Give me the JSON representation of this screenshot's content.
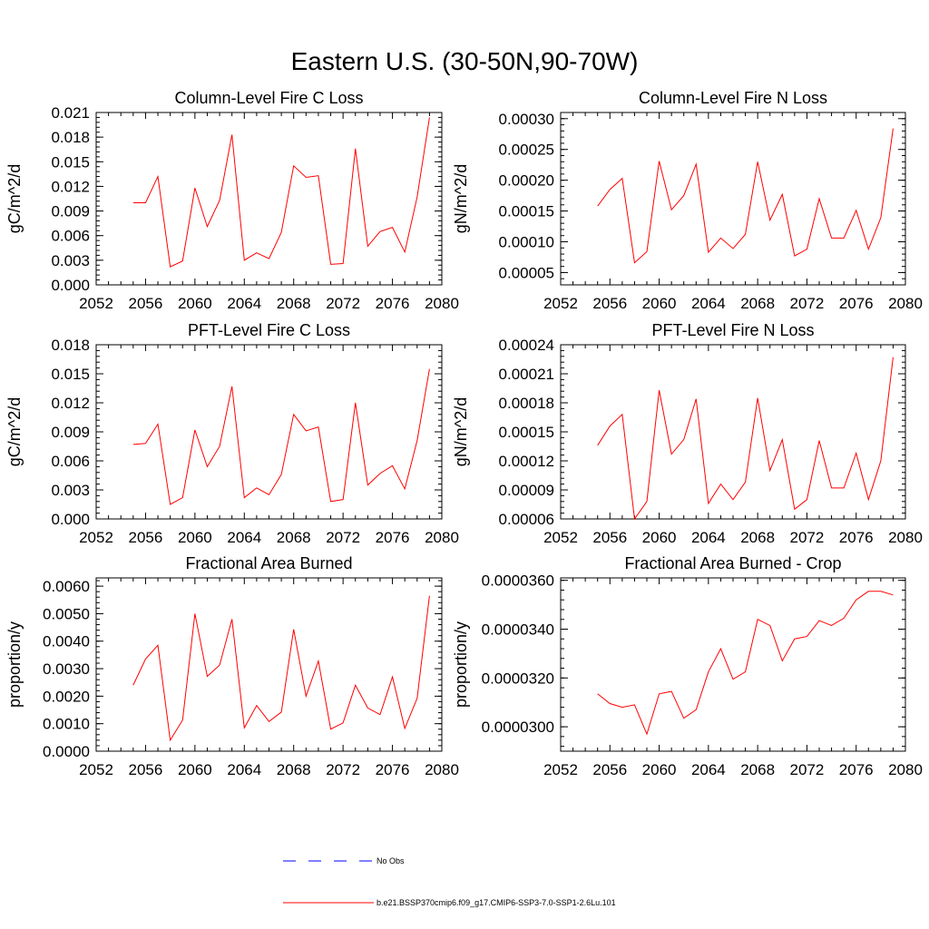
{
  "figure": {
    "title": "Eastern U.S. (30-50N,90-70W)"
  },
  "legend": {
    "items": [
      {
        "label": "No Obs",
        "color": "#0000ff",
        "dash": true
      },
      {
        "label": "b.e21.BSSP370cmip6.f09_g17.CMIP6-SSP3-7.0-SSP1-2.6Lu.101",
        "color": "#ff0000",
        "dash": false
      }
    ]
  },
  "chart_data": [
    {
      "type": "line",
      "title": "Column-Level Fire C Loss",
      "ylabel": "gC/m^2/d",
      "xlabel": "",
      "xlim": [
        2052,
        2080
      ],
      "xticks": [
        "2052",
        "2056",
        "2060",
        "2064",
        "2068",
        "2072",
        "2076",
        "2080"
      ],
      "ylim": [
        0,
        0.021
      ],
      "yticks": [
        "0.000",
        "0.003",
        "0.006",
        "0.009",
        "0.012",
        "0.015",
        "0.018",
        "0.021"
      ],
      "series": [
        {
          "color": "#ff0000",
          "x": [
            2055,
            2056,
            2057,
            2058,
            2059,
            2060,
            2061,
            2062,
            2063,
            2064,
            2065,
            2066,
            2067,
            2068,
            2069,
            2070,
            2071,
            2072,
            2073,
            2074,
            2075,
            2076,
            2077,
            2078,
            2079
          ],
          "y": [
            0.01,
            0.01,
            0.0132,
            0.0022,
            0.0029,
            0.0118,
            0.0071,
            0.0103,
            0.0183,
            0.003,
            0.0039,
            0.0032,
            0.0064,
            0.0145,
            0.0131,
            0.0133,
            0.0025,
            0.0026,
            0.0166,
            0.0047,
            0.0065,
            0.007,
            0.004,
            0.0107,
            0.0204
          ]
        }
      ]
    },
    {
      "type": "line",
      "title": "Column-Level Fire N Loss",
      "ylabel": "gN/m^2/d",
      "xlabel": "",
      "xlim": [
        2052,
        2080
      ],
      "xticks": [
        "2052",
        "2056",
        "2060",
        "2064",
        "2068",
        "2072",
        "2076",
        "2080"
      ],
      "ylim": [
        3e-05,
        0.00031
      ],
      "yticks": [
        "0.00005",
        "0.00010",
        "0.00015",
        "0.00020",
        "0.00025",
        "0.00030"
      ],
      "series": [
        {
          "color": "#ff0000",
          "x": [
            2055,
            2056,
            2057,
            2058,
            2059,
            2060,
            2061,
            2062,
            2063,
            2064,
            2065,
            2066,
            2067,
            2068,
            2069,
            2070,
            2071,
            2072,
            2073,
            2074,
            2075,
            2076,
            2077,
            2078,
            2079
          ],
          "y": [
            0.000158,
            0.000185,
            0.000203,
            6.6e-05,
            8.4e-05,
            0.000231,
            0.000152,
            0.000175,
            0.000226,
            8.3e-05,
            0.000106,
            8.9e-05,
            0.000112,
            0.00023,
            0.000135,
            0.000177,
            7.7e-05,
            8.8e-05,
            0.00017,
            0.000106,
            0.000106,
            0.000151,
            8.8e-05,
            0.000139,
            0.000284
          ]
        }
      ]
    },
    {
      "type": "line",
      "title": "PFT-Level Fire C Loss",
      "ylabel": "gC/m^2/d",
      "xlabel": "",
      "xlim": [
        2052,
        2080
      ],
      "xticks": [
        "2052",
        "2056",
        "2060",
        "2064",
        "2068",
        "2072",
        "2076",
        "2080"
      ],
      "ylim": [
        0,
        0.018
      ],
      "yticks": [
        "0.000",
        "0.003",
        "0.006",
        "0.009",
        "0.012",
        "0.015",
        "0.018"
      ],
      "series": [
        {
          "color": "#ff0000",
          "x": [
            2055,
            2056,
            2057,
            2058,
            2059,
            2060,
            2061,
            2062,
            2063,
            2064,
            2065,
            2066,
            2067,
            2068,
            2069,
            2070,
            2071,
            2072,
            2073,
            2074,
            2075,
            2076,
            2077,
            2078,
            2079
          ],
          "y": [
            0.0077,
            0.0078,
            0.0098,
            0.0015,
            0.0022,
            0.0092,
            0.0054,
            0.0075,
            0.0137,
            0.0022,
            0.0032,
            0.0025,
            0.0046,
            0.0108,
            0.0091,
            0.0095,
            0.0018,
            0.002,
            0.012,
            0.0035,
            0.0047,
            0.0055,
            0.0031,
            0.0081,
            0.0155
          ]
        }
      ]
    },
    {
      "type": "line",
      "title": "PFT-Level Fire N Loss",
      "ylabel": "gN/m^2/d",
      "xlabel": "",
      "xlim": [
        2052,
        2080
      ],
      "xticks": [
        "2052",
        "2056",
        "2060",
        "2064",
        "2068",
        "2072",
        "2076",
        "2080"
      ],
      "ylim": [
        6e-05,
        0.00024
      ],
      "yticks": [
        "0.00006",
        "0.00009",
        "0.00012",
        "0.00015",
        "0.00018",
        "0.00021",
        "0.00024"
      ],
      "series": [
        {
          "color": "#ff0000",
          "x": [
            2055,
            2056,
            2057,
            2058,
            2059,
            2060,
            2061,
            2062,
            2063,
            2064,
            2065,
            2066,
            2067,
            2068,
            2069,
            2070,
            2071,
            2072,
            2073,
            2074,
            2075,
            2076,
            2077,
            2078,
            2079
          ],
          "y": [
            0.000136,
            0.000156,
            0.000168,
            6e-05,
            7.8e-05,
            0.000193,
            0.000127,
            0.000142,
            0.000184,
            7.6e-05,
            9.6e-05,
            8e-05,
            9.8e-05,
            0.000185,
            0.00011,
            0.000142,
            7e-05,
            8e-05,
            0.000141,
            9.2e-05,
            9.2e-05,
            0.000128,
            8e-05,
            0.00012,
            0.000227
          ]
        }
      ]
    },
    {
      "type": "line",
      "title": "Fractional Area Burned",
      "ylabel": "proportion/y",
      "xlabel": "",
      "xlim": [
        2052,
        2080
      ],
      "xticks": [
        "2052",
        "2056",
        "2060",
        "2064",
        "2068",
        "2072",
        "2076",
        "2080"
      ],
      "ylim": [
        0,
        0.0063
      ],
      "yticks": [
        "0.0000",
        "0.0010",
        "0.0020",
        "0.0030",
        "0.0040",
        "0.0050",
        "0.0060"
      ],
      "series": [
        {
          "color": "#ff0000",
          "x": [
            2055,
            2056,
            2057,
            2058,
            2059,
            2060,
            2061,
            2062,
            2063,
            2064,
            2065,
            2066,
            2067,
            2068,
            2069,
            2070,
            2071,
            2072,
            2073,
            2074,
            2075,
            2076,
            2077,
            2078,
            2079
          ],
          "y": [
            0.0024,
            0.00335,
            0.00385,
            0.0004,
            0.00113,
            0.005,
            0.00272,
            0.00313,
            0.0048,
            0.00085,
            0.00166,
            0.00108,
            0.00142,
            0.00443,
            0.002,
            0.00328,
            0.0008,
            0.00103,
            0.0024,
            0.00157,
            0.00133,
            0.0027,
            0.00083,
            0.00192,
            0.00565
          ]
        }
      ]
    },
    {
      "type": "line",
      "title": "Fractional Area Burned - Crop",
      "ylabel": "proportion/y",
      "xlabel": "",
      "xlim": [
        2052,
        2080
      ],
      "xticks": [
        "2052",
        "2056",
        "2060",
        "2064",
        "2068",
        "2072",
        "2076",
        "2080"
      ],
      "ylim": [
        2.9e-05,
        3.61e-05
      ],
      "yticks": [
        "0.0000300",
        "0.0000320",
        "0.0000340",
        "0.0000360"
      ],
      "series": [
        {
          "color": "#ff0000",
          "x": [
            2055,
            2056,
            2057,
            2058,
            2059,
            2060,
            2061,
            2062,
            2063,
            2064,
            2065,
            2066,
            2067,
            2068,
            2069,
            2070,
            2071,
            2072,
            2073,
            2074,
            2075,
            2076,
            2077,
            2078,
            2079
          ],
          "y": [
            3.135e-05,
            3.095e-05,
            3.08e-05,
            3.09e-05,
            2.97e-05,
            3.135e-05,
            3.145e-05,
            3.035e-05,
            3.07e-05,
            3.225e-05,
            3.32e-05,
            3.195e-05,
            3.225e-05,
            3.44e-05,
            3.415e-05,
            3.27e-05,
            3.36e-05,
            3.37e-05,
            3.435e-05,
            3.415e-05,
            3.445e-05,
            3.52e-05,
            3.555e-05,
            3.555e-05,
            3.54e-05
          ]
        }
      ]
    }
  ]
}
